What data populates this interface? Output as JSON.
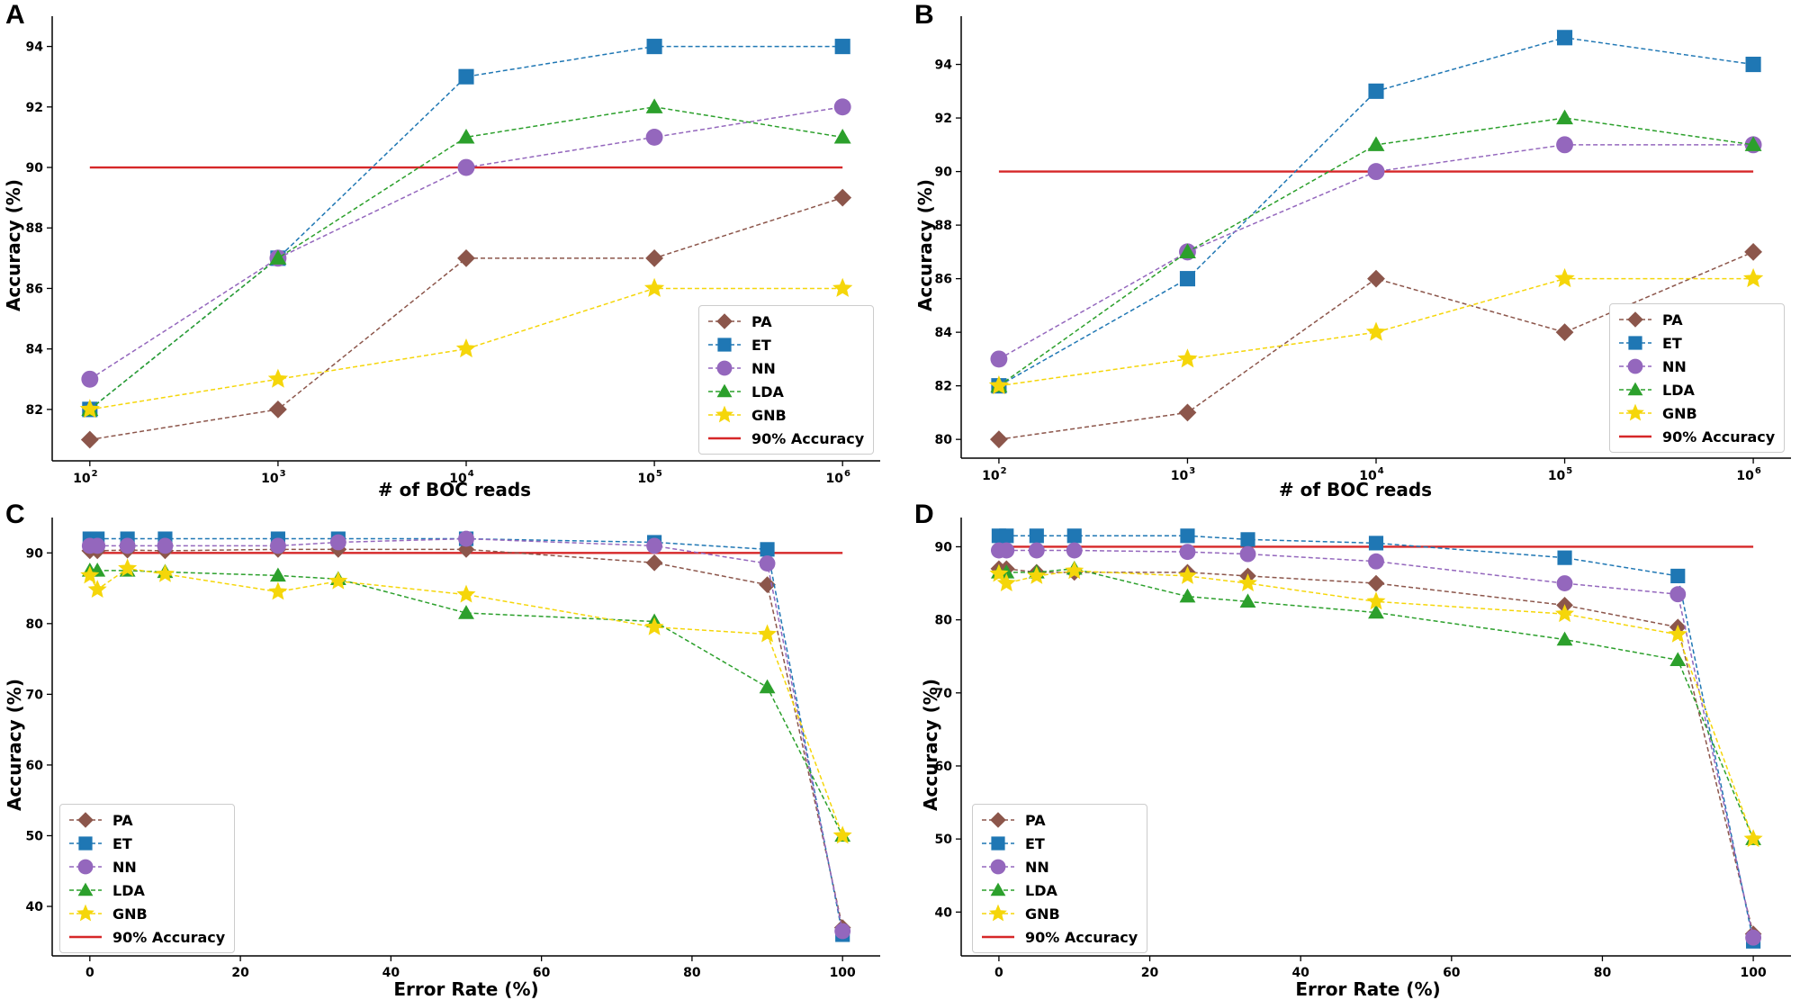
{
  "legend_labels": [
    "PA",
    "ET",
    "NN",
    "LDA",
    "GNB",
    "90% Accuracy"
  ],
  "colors": {
    "PA": "#8c564b",
    "ET": "#1f77b4",
    "NN": "#9467bd",
    "LDA": "#2ca02c",
    "GNB": "#f5d60a",
    "threshold": "#d62728"
  },
  "chart_data": [
    {
      "panel": "A",
      "type": "line",
      "xscale": "log",
      "x": [
        100,
        1000,
        10000,
        100000,
        1000000
      ],
      "x_tick_labels": [
        [
          "10",
          "2"
        ],
        [
          "10",
          "3"
        ],
        [
          "10",
          "4"
        ],
        [
          "10",
          "5"
        ],
        [
          "10",
          "6"
        ]
      ],
      "xlabel": "# of BOC reads",
      "ylabel": "Accuracy (%)",
      "ylim": [
        80.3,
        95.0
      ],
      "yticks": [
        82,
        84,
        86,
        88,
        90,
        92,
        94
      ],
      "threshold": 90,
      "legend_position": "lower-right",
      "series": [
        {
          "name": "PA",
          "values": [
            81,
            82,
            87,
            87,
            89
          ]
        },
        {
          "name": "ET",
          "values": [
            82,
            87,
            93,
            94,
            94
          ]
        },
        {
          "name": "NN",
          "values": [
            83,
            87,
            90,
            91,
            92
          ]
        },
        {
          "name": "LDA",
          "values": [
            82,
            87,
            91,
            92,
            91
          ]
        },
        {
          "name": "GNB",
          "values": [
            82,
            83,
            84,
            86,
            86
          ]
        }
      ]
    },
    {
      "panel": "B",
      "type": "line",
      "xscale": "log",
      "x": [
        100,
        1000,
        10000,
        100000,
        1000000
      ],
      "x_tick_labels": [
        [
          "10",
          "2"
        ],
        [
          "10",
          "3"
        ],
        [
          "10",
          "4"
        ],
        [
          "10",
          "5"
        ],
        [
          "10",
          "6"
        ]
      ],
      "xlabel": "# of BOC reads",
      "ylabel": "Accuracy (%)",
      "ylim": [
        79.3,
        95.8
      ],
      "yticks": [
        80,
        82,
        84,
        86,
        88,
        90,
        92,
        94
      ],
      "threshold": 90,
      "legend_position": "lower-right",
      "series": [
        {
          "name": "PA",
          "values": [
            80,
            81,
            86,
            84,
            87
          ]
        },
        {
          "name": "ET",
          "values": [
            82,
            86,
            93,
            95,
            94
          ]
        },
        {
          "name": "NN",
          "values": [
            83,
            87,
            90,
            91,
            91
          ]
        },
        {
          "name": "LDA",
          "values": [
            82,
            87,
            91,
            92,
            91
          ]
        },
        {
          "name": "GNB",
          "values": [
            82,
            83,
            84,
            86,
            86
          ]
        }
      ]
    },
    {
      "panel": "C",
      "type": "line",
      "xscale": "linear",
      "x": [
        0,
        1,
        5,
        10,
        25,
        33,
        50,
        75,
        90,
        100
      ],
      "xticks": [
        0,
        20,
        40,
        60,
        80,
        100
      ],
      "xlim": [
        -5,
        105
      ],
      "xlabel": "Error Rate (%)",
      "ylabel": "Accuracy (%)",
      "ylim": [
        33,
        95
      ],
      "yticks": [
        40,
        50,
        60,
        70,
        80,
        90
      ],
      "threshold": 90,
      "legend_position": "lower-left",
      "series": [
        {
          "name": "PA",
          "values": [
            90.3,
            90.3,
            90.4,
            90.3,
            90.5,
            90.5,
            90.5,
            88.6,
            85.5,
            37
          ]
        },
        {
          "name": "ET",
          "values": [
            92,
            92,
            92,
            92,
            92,
            92,
            92,
            91.5,
            90.5,
            36
          ]
        },
        {
          "name": "NN",
          "values": [
            91,
            91,
            91,
            91,
            91,
            91.5,
            92,
            91,
            88.5,
            36.5
          ]
        },
        {
          "name": "LDA",
          "values": [
            87.5,
            87.5,
            87.5,
            87.3,
            86.8,
            86.3,
            81.5,
            80.3,
            71,
            50
          ]
        },
        {
          "name": "GNB",
          "values": [
            86.8,
            84.8,
            87.8,
            87,
            84.5,
            86,
            84.1,
            79.5,
            78.5,
            50
          ]
        }
      ]
    },
    {
      "panel": "D",
      "type": "line",
      "xscale": "linear",
      "x": [
        0,
        1,
        5,
        10,
        25,
        33,
        50,
        75,
        90,
        100
      ],
      "xticks": [
        0,
        20,
        40,
        60,
        80,
        100
      ],
      "xlim": [
        -5,
        105
      ],
      "xlabel": "Error Rate (%)",
      "ylabel": "Accuracy (%)",
      "ylim": [
        34,
        94
      ],
      "yticks": [
        40,
        50,
        60,
        70,
        80,
        90
      ],
      "threshold": 90,
      "legend_position": "lower-left",
      "series": [
        {
          "name": "PA",
          "values": [
            87,
            87,
            86.5,
            86.5,
            86.5,
            86,
            85,
            82,
            79,
            37
          ]
        },
        {
          "name": "ET",
          "values": [
            91.5,
            91.5,
            91.5,
            91.5,
            91.5,
            91,
            90.5,
            88.5,
            86,
            36
          ]
        },
        {
          "name": "NN",
          "values": [
            89.5,
            89.5,
            89.5,
            89.5,
            89.3,
            89,
            88,
            85,
            83.5,
            36.5
          ]
        },
        {
          "name": "LDA",
          "values": [
            86.5,
            86.5,
            86.5,
            87,
            83.2,
            82.5,
            81,
            77.3,
            74.5,
            50
          ]
        },
        {
          "name": "GNB",
          "values": [
            86.3,
            85,
            86,
            86.7,
            86,
            85,
            82.5,
            80.8,
            78,
            50
          ]
        }
      ]
    }
  ]
}
